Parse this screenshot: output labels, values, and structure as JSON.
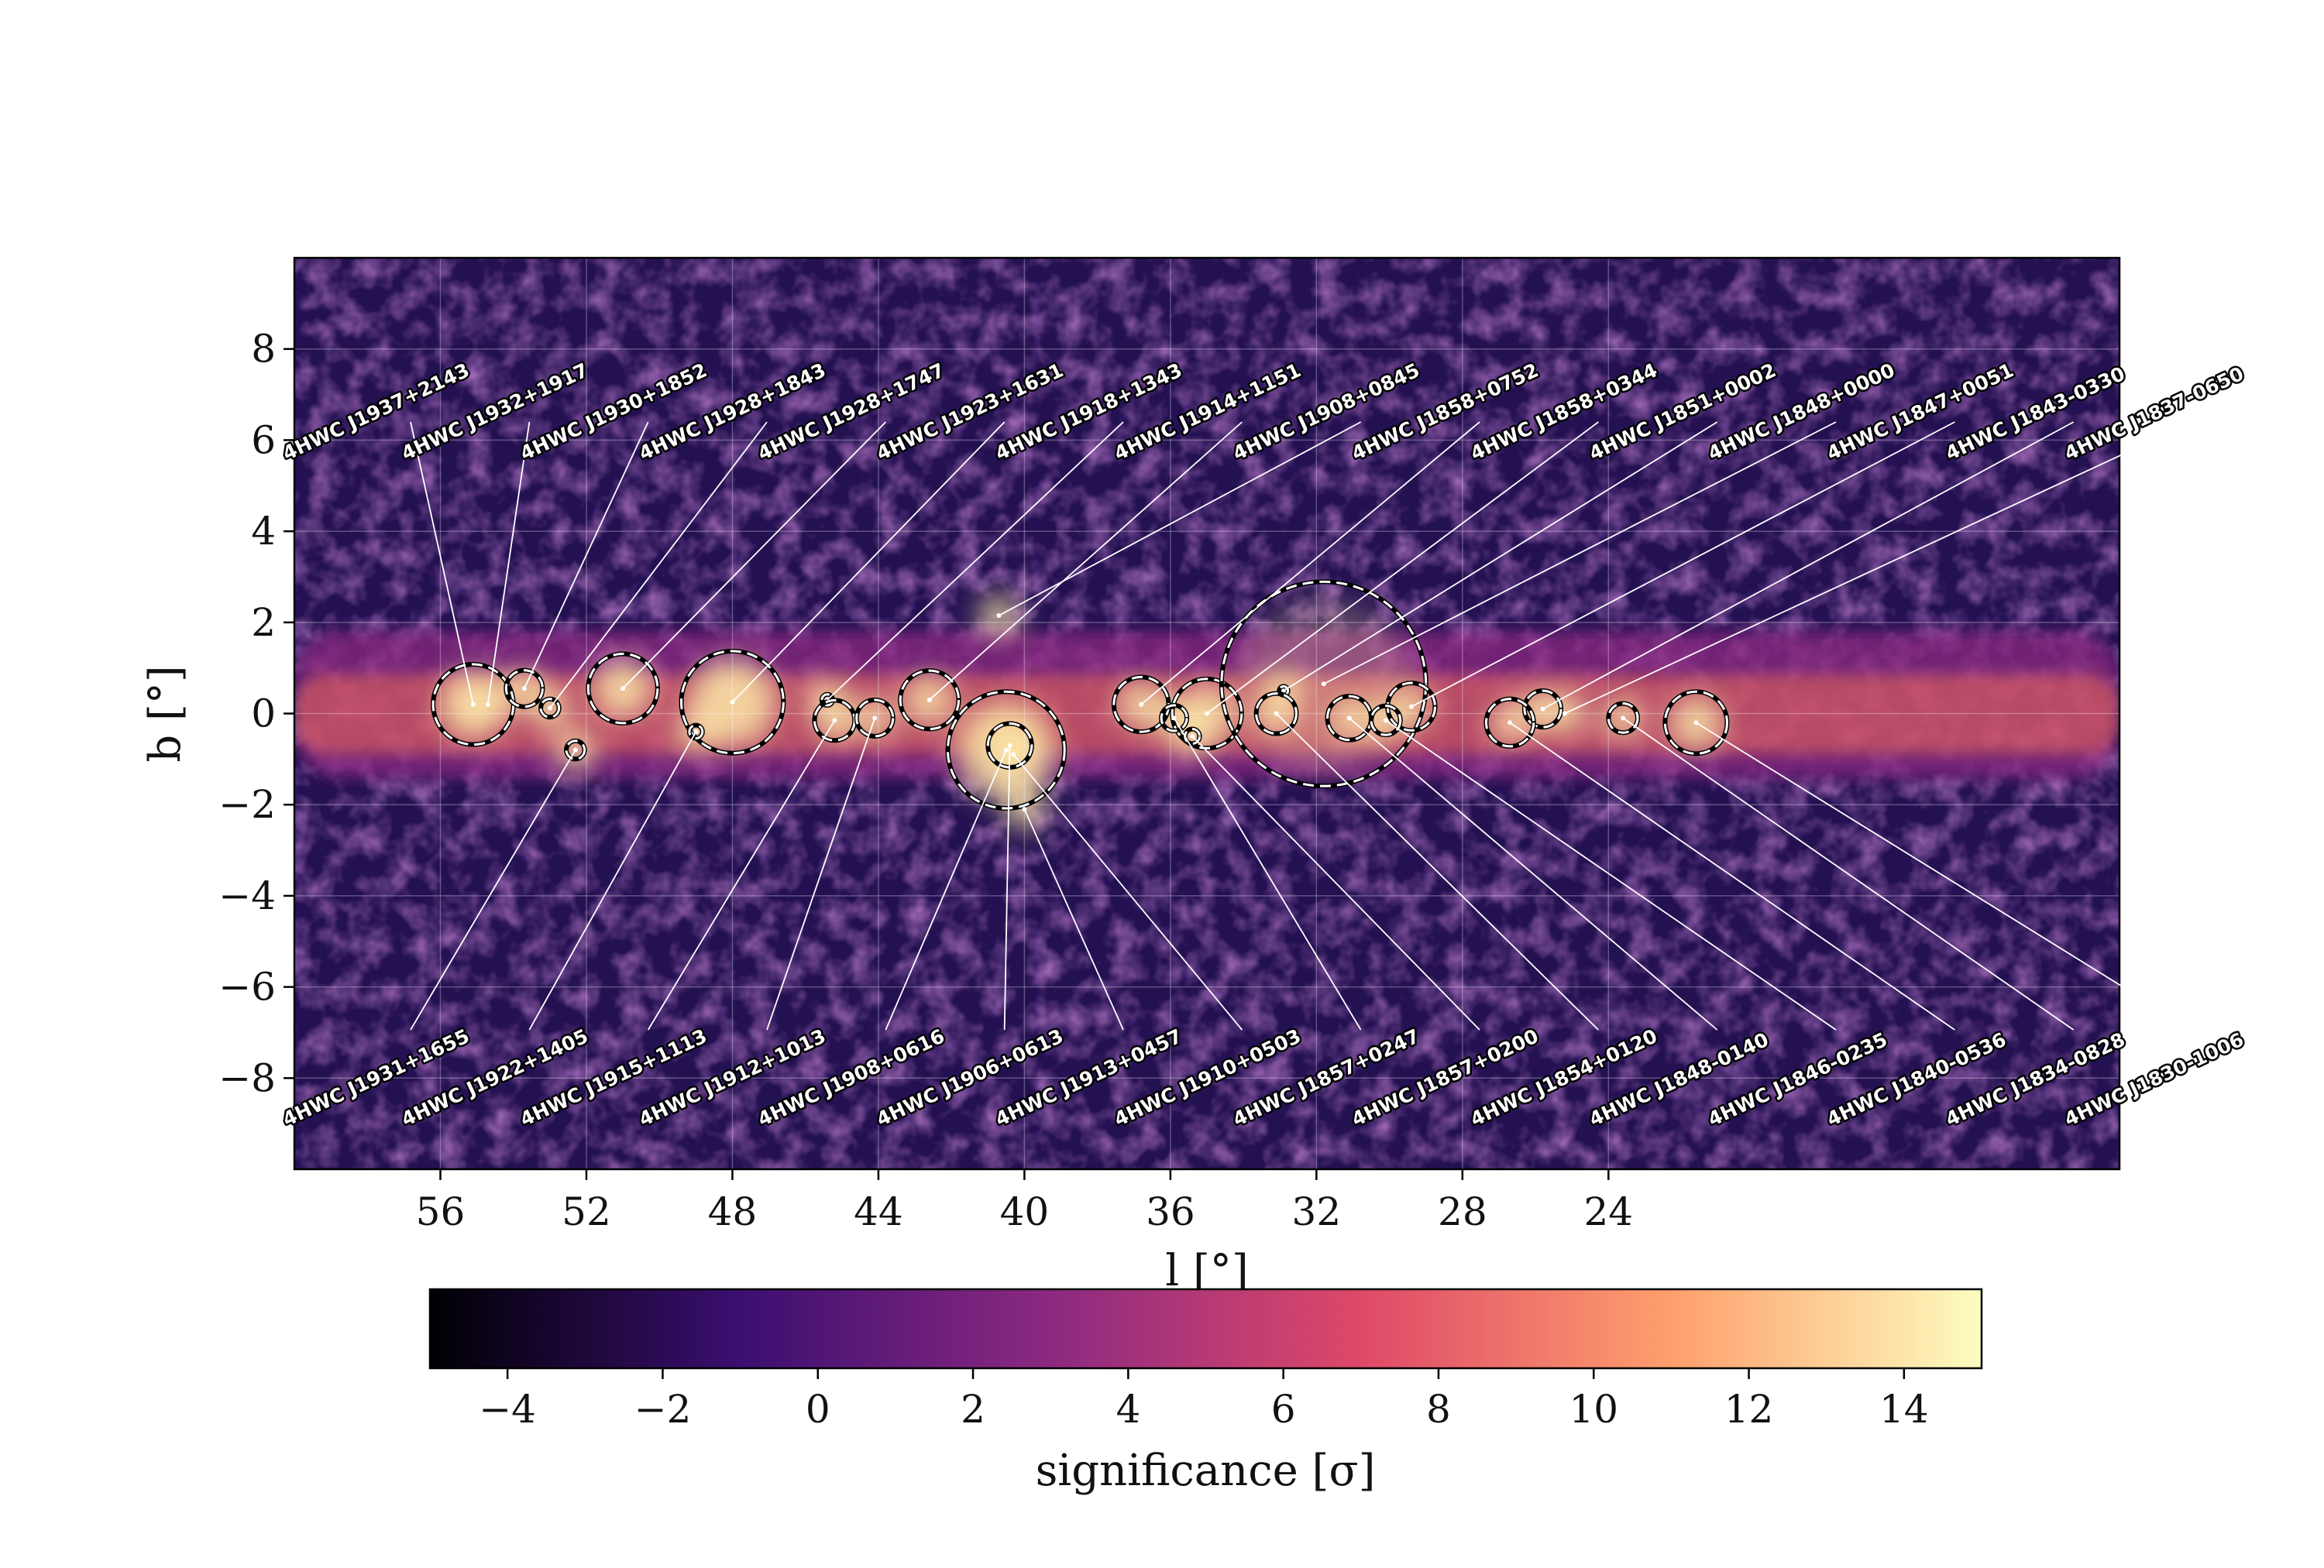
{
  "chart_data": {
    "type": "heatmap",
    "title": "",
    "xlabel": "l [°]",
    "ylabel": "b [°]",
    "xlim": [
      60,
      10
    ],
    "ylim": [
      -10,
      10
    ],
    "xticks": [
      56,
      52,
      48,
      44,
      40,
      36,
      32,
      28,
      24
    ],
    "xtick_labels": [
      "56",
      "52",
      "48",
      "44",
      "40",
      "36",
      "32",
      "28",
      "24"
    ],
    "yticks": [
      8,
      6,
      4,
      2,
      0,
      -2,
      -4,
      -6,
      -8
    ],
    "ytick_labels": [
      "8",
      "6",
      "4",
      "2",
      "0",
      "−2",
      "−4",
      "−6",
      "−8"
    ],
    "grid": true,
    "colorbar": {
      "label": "significance [σ]",
      "range": [
        -5,
        15
      ],
      "ticks": [
        -4,
        -2,
        0,
        2,
        4,
        6,
        8,
        10,
        12,
        14
      ],
      "tick_labels": [
        "−4",
        "−2",
        "0",
        "2",
        "4",
        "6",
        "8",
        "10",
        "12",
        "14"
      ],
      "colormap": [
        "#000004",
        "#3b0f70",
        "#8c2981",
        "#de4968",
        "#fe9f6d",
        "#fcfdbf"
      ]
    },
    "sources_top": [
      {
        "name": "4HWC J1937+2143",
        "l": 55.1,
        "b": 0.2,
        "ext": 1.1
      },
      {
        "name": "4HWC J1932+1917",
        "l": 54.7,
        "b": 0.2,
        "ext": 0
      },
      {
        "name": "4HWC J1930+1852",
        "l": 53.7,
        "b": 0.55,
        "ext": 0.5
      },
      {
        "name": "4HWC J1928+1843",
        "l": 53.0,
        "b": 0.12,
        "ext": 0.25
      },
      {
        "name": "4HWC J1928+1747",
        "l": 51.0,
        "b": 0.55,
        "ext": 0.95
      },
      {
        "name": "4HWC J1923+1631",
        "l": 48.0,
        "b": 0.25,
        "ext": 1.4
      },
      {
        "name": "4HWC J1918+1343",
        "l": 45.4,
        "b": 0.3,
        "ext": 0.15
      },
      {
        "name": "4HWC J1914+1151",
        "l": 42.6,
        "b": 0.3,
        "ext": 0.8
      },
      {
        "name": "4HWC J1908+0845",
        "l": 40.7,
        "b": 2.15,
        "ext": 0
      },
      {
        "name": "4HWC J1858+0752",
        "l": 36.8,
        "b": 0.2,
        "ext": 0.75
      },
      {
        "name": "4HWC J1858+0344",
        "l": 35.0,
        "b": 0.0,
        "ext": 0.95
      },
      {
        "name": "4HWC J1851+0002",
        "l": 32.9,
        "b": 0.5,
        "ext": 0.12
      },
      {
        "name": "4HWC J1848+0000",
        "l": 31.8,
        "b": 0.65,
        "ext": 2.8
      },
      {
        "name": "4HWC J1847+0051",
        "l": 29.4,
        "b": 0.15,
        "ext": 0.65
      },
      {
        "name": "4HWC J1843-0330",
        "l": 25.8,
        "b": 0.1,
        "ext": 0.5
      },
      {
        "name": "4HWC J1837-0650",
        "l": 25.2,
        "b": 0.0,
        "ext": 0
      }
    ],
    "sources_bottom": [
      {
        "name": "4HWC J1931+1655",
        "l": 52.3,
        "b": -0.8,
        "ext": 0.25
      },
      {
        "name": "4HWC J1922+1405",
        "l": 49.0,
        "b": -0.4,
        "ext": 0.18
      },
      {
        "name": "4HWC J1915+1113",
        "l": 45.2,
        "b": -0.15,
        "ext": 0.55
      },
      {
        "name": "4HWC J1912+1013",
        "l": 44.1,
        "b": -0.1,
        "ext": 0.5
      },
      {
        "name": "4HWC J1908+0616",
        "l": 40.5,
        "b": -0.8,
        "ext": 1.6
      },
      {
        "name": "4HWC J1906+0613",
        "l": 40.4,
        "b": -0.7,
        "ext": 0.6
      },
      {
        "name": "4HWC J1913+0457",
        "l": 40.0,
        "b": -2.1,
        "ext": 0
      },
      {
        "name": "4HWC J1910+0503",
        "l": 40.3,
        "b": -0.9,
        "ext": 0
      },
      {
        "name": "4HWC J1857+0247",
        "l": 35.9,
        "b": -0.1,
        "ext": 0.35
      },
      {
        "name": "4HWC J1857+0200",
        "l": 35.4,
        "b": -0.5,
        "ext": 0.2
      },
      {
        "name": "4HWC J1854+0120",
        "l": 33.1,
        "b": 0.0,
        "ext": 0.55
      },
      {
        "name": "4HWC J1848-0140",
        "l": 31.1,
        "b": -0.1,
        "ext": 0.6
      },
      {
        "name": "4HWC J1846-0235",
        "l": 30.1,
        "b": -0.15,
        "ext": 0.4
      },
      {
        "name": "4HWC J1840-0536",
        "l": 26.7,
        "b": -0.2,
        "ext": 0.65
      },
      {
        "name": "4HWC J1834-0828",
        "l": 23.6,
        "b": -0.1,
        "ext": 0.4
      },
      {
        "name": "4HWC J1830-1006",
        "l": 21.6,
        "b": -0.2,
        "ext": 0.85
      }
    ]
  }
}
